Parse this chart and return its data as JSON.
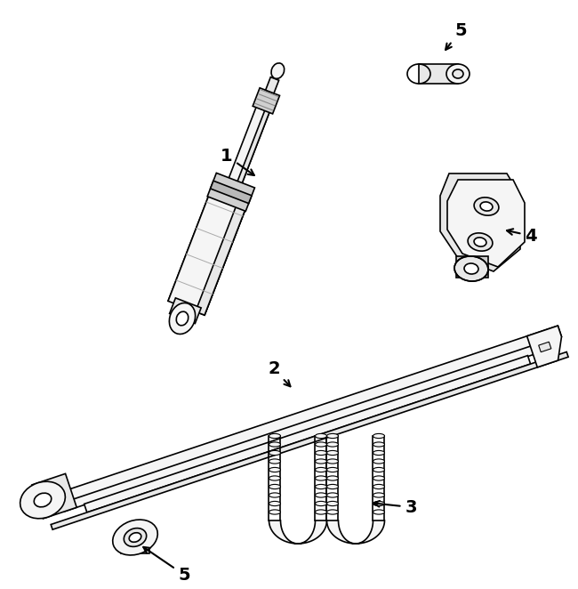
{
  "background_color": "#ffffff",
  "line_color": "#000000",
  "line_width": 1.2,
  "fill_color": "#ffffff",
  "shade_light": "#f5f5f5",
  "shade_mid": "#e8e8e8",
  "shade_dark": "#d0d0d0"
}
